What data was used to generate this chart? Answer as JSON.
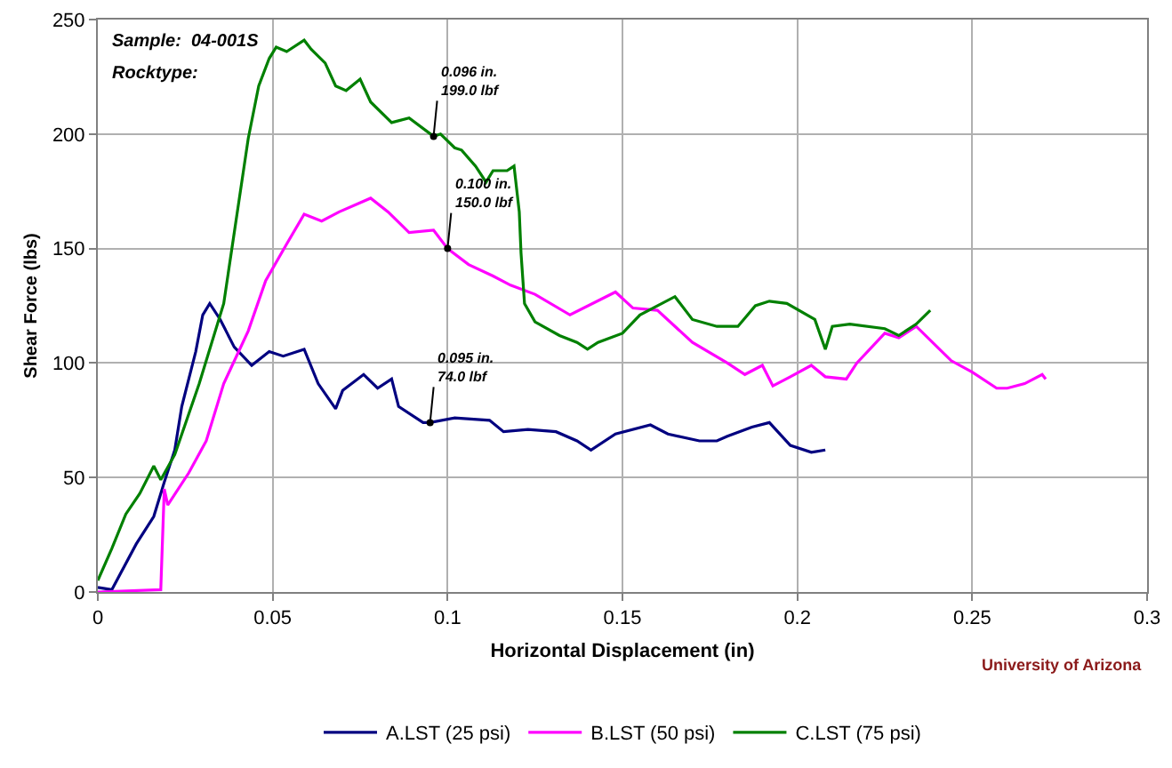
{
  "chart_data": {
    "type": "line",
    "xlabel": "Horizontal Displacement (in)",
    "ylabel": "Shear Force (lbs)",
    "xlim": [
      0,
      0.3
    ],
    "xticks": [
      0,
      0.05,
      0.1,
      0.15,
      0.2,
      0.25,
      0.3
    ],
    "ylim": [
      0,
      250
    ],
    "yticks": [
      0,
      50,
      100,
      150,
      200,
      250
    ],
    "grid": true,
    "legend": "bottom",
    "marker": "none",
    "line_style": "solid",
    "annotations": [
      "Sample:  04-001S",
      "Rocktype:",
      "University of Arizona",
      {
        "text": "0.096 in.\n199.0 lbf",
        "x": 0.096,
        "y": 199
      },
      {
        "text": "0.100 in.\n150.0 lbf",
        "x": 0.1,
        "y": 150
      },
      {
        "text": "0.095 in.\n74.0 lbf",
        "x": 0.095,
        "y": 74
      }
    ],
    "series": [
      {
        "name": "A.LST (25 psi)",
        "color": "#000080",
        "x": [
          0,
          0.004,
          0.011,
          0.016,
          0.019,
          0.022,
          0.024,
          0.028,
          0.03,
          0.032,
          0.035,
          0.039,
          0.044,
          0.049,
          0.053,
          0.059,
          0.063,
          0.068,
          0.07,
          0.076,
          0.08,
          0.084,
          0.086,
          0.093,
          0.095,
          0.102,
          0.112,
          0.116,
          0.123,
          0.131,
          0.137,
          0.141,
          0.148,
          0.158,
          0.163,
          0.172,
          0.177,
          0.18,
          0.187,
          0.192,
          0.198,
          0.204,
          0.208
        ],
        "values": [
          2,
          1,
          21,
          33,
          48,
          62,
          81,
          105,
          121,
          126,
          119,
          107,
          99,
          105,
          103,
          106,
          91,
          80,
          88,
          95,
          89,
          93,
          81,
          74,
          74,
          76,
          75,
          70,
          71,
          70,
          66,
          62,
          69,
          73,
          69,
          66,
          66,
          68,
          72,
          74,
          64,
          61,
          62
        ]
      },
      {
        "name": "B.LST (50 psi)",
        "color": "#ff00ff",
        "x": [
          0,
          0.018,
          0.019,
          0.02,
          0.026,
          0.031,
          0.036,
          0.043,
          0.048,
          0.054,
          0.059,
          0.064,
          0.069,
          0.078,
          0.083,
          0.089,
          0.096,
          0.1,
          0.106,
          0.113,
          0.118,
          0.125,
          0.135,
          0.148,
          0.153,
          0.16,
          0.17,
          0.18,
          0.185,
          0.19,
          0.193,
          0.198,
          0.204,
          0.208,
          0.214,
          0.217,
          0.225,
          0.229,
          0.234,
          0.24,
          0.244,
          0.25,
          0.257,
          0.26,
          0.265,
          0.27,
          0.271
        ],
        "values": [
          0,
          1,
          45,
          38,
          52,
          66,
          91,
          114,
          136,
          152,
          165,
          162,
          166,
          172,
          166,
          157,
          158,
          150,
          143,
          138,
          134,
          130,
          121,
          131,
          124,
          123,
          109,
          100,
          95,
          99,
          90,
          94,
          99,
          94,
          93,
          100,
          113,
          111,
          116,
          107,
          101,
          96,
          89,
          89,
          91,
          95,
          93
        ]
      },
      {
        "name": "C.LST (75 psi)",
        "color": "#008000",
        "x": [
          0,
          0.004,
          0.008,
          0.012,
          0.016,
          0.018,
          0.022,
          0.029,
          0.036,
          0.043,
          0.046,
          0.049,
          0.051,
          0.054,
          0.059,
          0.061,
          0.065,
          0.068,
          0.071,
          0.075,
          0.078,
          0.084,
          0.089,
          0.096,
          0.098,
          0.102,
          0.104,
          0.108,
          0.111,
          0.113,
          0.117,
          0.119,
          0.1205,
          0.121,
          0.122,
          0.125,
          0.132,
          0.137,
          0.14,
          0.143,
          0.15,
          0.155,
          0.165,
          0.17,
          0.177,
          0.183,
          0.188,
          0.192,
          0.197,
          0.205,
          0.208,
          0.21,
          0.215,
          0.225,
          0.229,
          0.234,
          0.238
        ],
        "values": [
          5,
          19,
          34,
          43,
          55,
          49,
          60,
          91,
          126,
          198,
          221,
          233,
          238,
          236,
          241,
          237,
          231,
          221,
          219,
          224,
          214,
          205,
          207,
          199,
          200,
          194,
          193,
          186,
          179,
          184,
          184,
          186,
          166,
          148,
          126,
          118,
          112,
          109,
          106,
          109,
          113,
          121,
          129,
          119,
          116,
          116,
          125,
          127,
          126,
          119,
          106,
          116,
          117,
          115,
          112,
          117,
          123
        ]
      }
    ]
  }
}
